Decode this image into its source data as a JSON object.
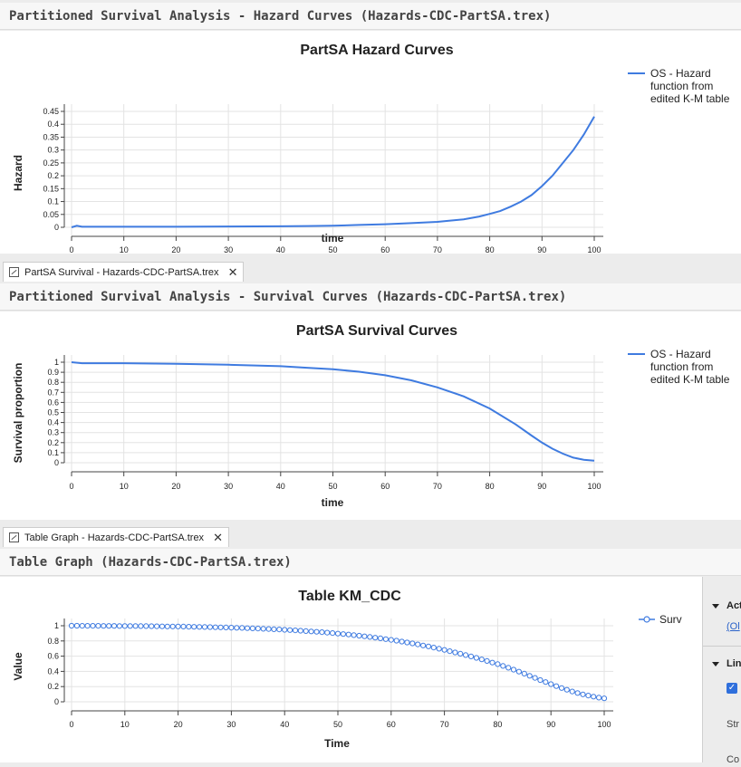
{
  "panels": [
    {
      "header": "Partitioned Survival Analysis - Hazard Curves (Hazards-CDC-PartSA.trex)",
      "chart_title": "PartSA Hazard Curves",
      "xlabel": "time",
      "ylabel": "Hazard",
      "legend": [
        "OS - Hazard",
        "function from",
        "edited K-M table"
      ],
      "x_ticks": [
        "0",
        "10",
        "20",
        "30",
        "40",
        "50",
        "60",
        "70",
        "80",
        "90",
        "100"
      ],
      "y_ticks": [
        "0",
        "0.05",
        "0.1",
        "0.15",
        "0.2",
        "0.25",
        "0.3",
        "0.35",
        "0.4",
        "0.45"
      ]
    },
    {
      "tab": "PartSA Survival - Hazards-CDC-PartSA.trex",
      "header": "Partitioned Survival Analysis - Survival Curves (Hazards-CDC-PartSA.trex)",
      "chart_title": "PartSA Survival Curves",
      "xlabel": "time",
      "ylabel": "Survival proportion",
      "legend": [
        "OS - Hazard",
        "function from",
        "edited K-M table"
      ],
      "x_ticks": [
        "0",
        "10",
        "20",
        "30",
        "40",
        "50",
        "60",
        "70",
        "80",
        "90",
        "100"
      ],
      "y_ticks": [
        "0",
        "0.1",
        "0.2",
        "0.3",
        "0.4",
        "0.5",
        "0.6",
        "0.7",
        "0.8",
        "0.9",
        "1"
      ]
    },
    {
      "tab": "Table Graph - Hazards-CDC-PartSA.trex",
      "header": "Table Graph (Hazards-CDC-PartSA.trex)",
      "chart_title": "Table KM_CDC",
      "xlabel": "Time",
      "ylabel": "Value",
      "legend": [
        "Surv"
      ],
      "x_ticks": [
        "0",
        "10",
        "20",
        "30",
        "40",
        "50",
        "60",
        "70",
        "80",
        "90",
        "100"
      ],
      "y_ticks": [
        "0",
        "0.2",
        "0.4",
        "0.6",
        "0.8",
        "1"
      ]
    }
  ],
  "side_panel": {
    "section1": "Act",
    "link": "(Ol",
    "section2": "Lin",
    "checkbox_checked": true,
    "label": "Str",
    "label2": "Co"
  },
  "colors": {
    "series": "#3f7be0",
    "grid": "#e3e3e3"
  },
  "icons": {
    "tab": "chart-icon",
    "close": "close-icon",
    "check": "checkmark-icon",
    "collapse": "triangle-down-icon"
  },
  "chart_data": [
    {
      "type": "line",
      "title": "PartSA Hazard Curves",
      "xlabel": "time",
      "ylabel": "Hazard",
      "xlim": [
        0,
        100
      ],
      "ylim": [
        0,
        0.45
      ],
      "series": [
        {
          "name": "OS - Hazard function from edited K-M table",
          "x": [
            0,
            1,
            2,
            5,
            10,
            20,
            30,
            40,
            45,
            50,
            55,
            60,
            65,
            70,
            72,
            75,
            78,
            80,
            82,
            84,
            86,
            88,
            90,
            92,
            94,
            96,
            98,
            100
          ],
          "y": [
            0.0,
            0.006,
            0.002,
            0.002,
            0.002,
            0.002,
            0.003,
            0.004,
            0.005,
            0.006,
            0.009,
            0.012,
            0.016,
            0.021,
            0.025,
            0.031,
            0.042,
            0.052,
            0.063,
            0.08,
            0.1,
            0.125,
            0.16,
            0.2,
            0.25,
            0.3,
            0.36,
            0.43
          ]
        }
      ]
    },
    {
      "type": "line",
      "title": "PartSA Survival Curves",
      "xlabel": "time",
      "ylabel": "Survival proportion",
      "xlim": [
        0,
        100
      ],
      "ylim": [
        0,
        1
      ],
      "series": [
        {
          "name": "OS - Hazard function from edited K-M table",
          "x": [
            0,
            2,
            10,
            20,
            30,
            40,
            45,
            50,
            55,
            60,
            65,
            70,
            75,
            80,
            85,
            88,
            90,
            92,
            94,
            96,
            98,
            100
          ],
          "y": [
            1.0,
            0.99,
            0.99,
            0.985,
            0.975,
            0.96,
            0.945,
            0.93,
            0.905,
            0.87,
            0.82,
            0.75,
            0.66,
            0.54,
            0.38,
            0.27,
            0.2,
            0.14,
            0.09,
            0.05,
            0.03,
            0.02
          ]
        }
      ]
    },
    {
      "type": "scatter",
      "title": "Table KM_CDC",
      "xlabel": "Time",
      "ylabel": "Value",
      "xlim": [
        0,
        100
      ],
      "ylim": [
        0,
        1
      ],
      "markers": "open-circle-line",
      "series": [
        {
          "name": "Surv",
          "x": [
            0,
            1,
            2,
            3,
            4,
            5,
            6,
            7,
            8,
            9,
            10,
            11,
            12,
            13,
            14,
            15,
            16,
            17,
            18,
            19,
            20,
            21,
            22,
            23,
            24,
            25,
            26,
            27,
            28,
            29,
            30,
            31,
            32,
            33,
            34,
            35,
            36,
            37,
            38,
            39,
            40,
            41,
            42,
            43,
            44,
            45,
            46,
            47,
            48,
            49,
            50,
            51,
            52,
            53,
            54,
            55,
            56,
            57,
            58,
            59,
            60,
            61,
            62,
            63,
            64,
            65,
            66,
            67,
            68,
            69,
            70,
            71,
            72,
            73,
            74,
            75,
            76,
            77,
            78,
            79,
            80,
            81,
            82,
            83,
            84,
            85,
            86,
            87,
            88,
            89,
            90,
            91,
            92,
            93,
            94,
            95,
            96,
            97,
            98,
            99,
            100
          ],
          "y": [
            1.0,
            1.0,
            0.999,
            0.999,
            0.999,
            0.999,
            0.998,
            0.998,
            0.998,
            0.997,
            0.997,
            0.996,
            0.996,
            0.995,
            0.995,
            0.994,
            0.993,
            0.992,
            0.991,
            0.991,
            0.99,
            0.989,
            0.987,
            0.986,
            0.985,
            0.983,
            0.982,
            0.98,
            0.979,
            0.977,
            0.975,
            0.973,
            0.971,
            0.968,
            0.966,
            0.963,
            0.96,
            0.957,
            0.954,
            0.951,
            0.947,
            0.943,
            0.939,
            0.935,
            0.93,
            0.925,
            0.92,
            0.915,
            0.91,
            0.904,
            0.897,
            0.891,
            0.884,
            0.876,
            0.869,
            0.861,
            0.852,
            0.843,
            0.834,
            0.824,
            0.814,
            0.803,
            0.792,
            0.78,
            0.768,
            0.755,
            0.741,
            0.728,
            0.713,
            0.698,
            0.682,
            0.666,
            0.649,
            0.632,
            0.614,
            0.596,
            0.577,
            0.557,
            0.537,
            0.516,
            0.495,
            0.472,
            0.448,
            0.423,
            0.397,
            0.37,
            0.342,
            0.314,
            0.286,
            0.259,
            0.232,
            0.206,
            0.181,
            0.158,
            0.136,
            0.116,
            0.098,
            0.082,
            0.068,
            0.055,
            0.045
          ]
        }
      ]
    }
  ]
}
